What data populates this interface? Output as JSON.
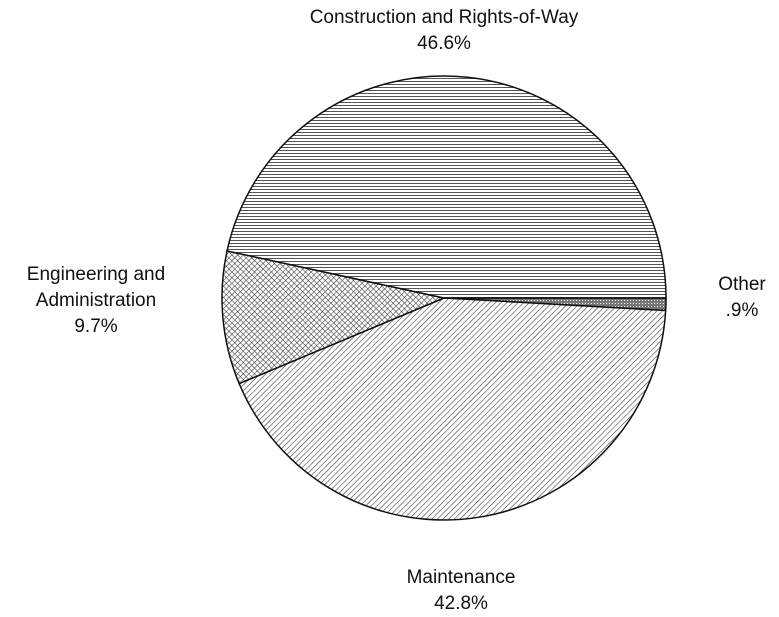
{
  "chart_data": {
    "type": "pie",
    "categories": [
      "Other",
      "Maintenance",
      "Engineering and Administration",
      "Construction and Rights-of-Way"
    ],
    "values": [
      0.9,
      42.8,
      9.7,
      46.6
    ],
    "value_labels": [
      ".9%",
      "42.8%",
      "9.7%",
      "46.6%"
    ]
  }
}
